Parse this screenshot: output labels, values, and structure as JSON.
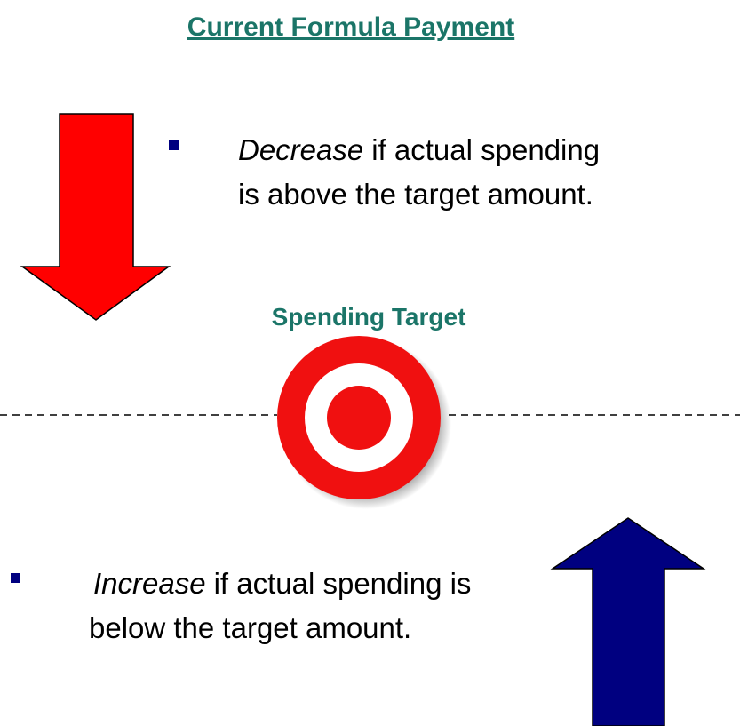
{
  "title": "Current Formula Payment",
  "target_label": "Spending Target",
  "bullets": [
    {
      "emphasis": "Decrease",
      "rest": "if actual spending",
      "line2": "is above the target amount."
    },
    {
      "emphasis": "Increase",
      "rest": "if actual spending is",
      "line2": "below the target amount."
    }
  ]
}
